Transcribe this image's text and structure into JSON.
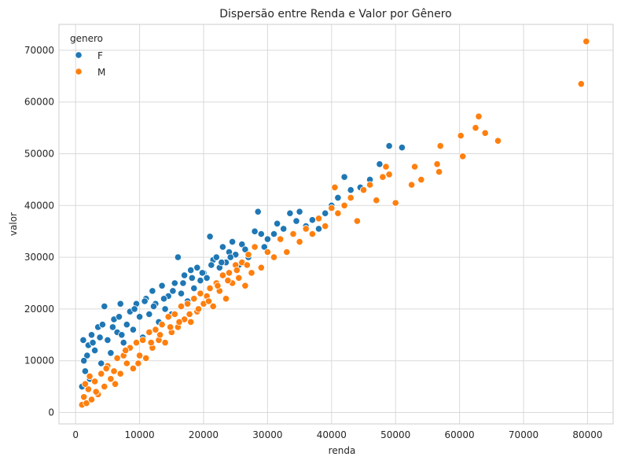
{
  "chart_data": {
    "type": "scatter",
    "title": "Dispersão entre Renda e Valor por Gênero",
    "xlabel": "renda",
    "ylabel": "valor",
    "xlim": [
      -2600,
      84000
    ],
    "ylim": [
      -2200,
      75000
    ],
    "xticks": [
      0,
      10000,
      20000,
      30000,
      40000,
      50000,
      60000,
      70000,
      80000
    ],
    "yticks": [
      0,
      10000,
      20000,
      30000,
      40000,
      50000,
      60000,
      70000
    ],
    "grid": true,
    "legend": {
      "title": "genero",
      "position": "top-left"
    },
    "series": [
      {
        "name": "F",
        "color": "#1f77b4",
        "points": [
          [
            1000,
            5000
          ],
          [
            1200,
            14000
          ],
          [
            1500,
            8000
          ],
          [
            1800,
            11000
          ],
          [
            2000,
            13000
          ],
          [
            2200,
            6500
          ],
          [
            2500,
            15000
          ],
          [
            3000,
            12000
          ],
          [
            3500,
            16500
          ],
          [
            4000,
            9500
          ],
          [
            4500,
            20500
          ],
          [
            5000,
            14000
          ],
          [
            5500,
            11500
          ],
          [
            6000,
            18000
          ],
          [
            6500,
            15500
          ],
          [
            7000,
            21000
          ],
          [
            7500,
            13500
          ],
          [
            8000,
            17000
          ],
          [
            8500,
            19500
          ],
          [
            9000,
            16000
          ],
          [
            9500,
            21000
          ],
          [
            10000,
            18500
          ],
          [
            10500,
            14500
          ],
          [
            11000,
            22000
          ],
          [
            11500,
            19000
          ],
          [
            12000,
            23500
          ],
          [
            12500,
            21000
          ],
          [
            13000,
            17500
          ],
          [
            13500,
            24500
          ],
          [
            14000,
            20000
          ],
          [
            14500,
            22500
          ],
          [
            15000,
            19000
          ],
          [
            15500,
            25000
          ],
          [
            16000,
            30000
          ],
          [
            16500,
            23000
          ],
          [
            17000,
            26500
          ],
          [
            17500,
            21500
          ],
          [
            18000,
            27500
          ],
          [
            18500,
            24000
          ],
          [
            19000,
            28000
          ],
          [
            19500,
            25500
          ],
          [
            20000,
            27000
          ],
          [
            20500,
            26000
          ],
          [
            21000,
            34000
          ],
          [
            21500,
            29500
          ],
          [
            22000,
            30000
          ],
          [
            22500,
            28000
          ],
          [
            23000,
            32000
          ],
          [
            23500,
            29000
          ],
          [
            24000,
            31000
          ],
          [
            24500,
            33000
          ],
          [
            25000,
            30500
          ],
          [
            25500,
            28500
          ],
          [
            26000,
            32500
          ],
          [
            26500,
            31500
          ],
          [
            27000,
            30000
          ],
          [
            28000,
            35000
          ],
          [
            28500,
            38800
          ],
          [
            29000,
            34500
          ],
          [
            29500,
            32000
          ],
          [
            30000,
            33500
          ],
          [
            31000,
            34500
          ],
          [
            31500,
            36500
          ],
          [
            32500,
            35500
          ],
          [
            33500,
            38500
          ],
          [
            34500,
            37000
          ],
          [
            35000,
            38800
          ],
          [
            36000,
            36000
          ],
          [
            37000,
            37200
          ],
          [
            38000,
            35500
          ],
          [
            39000,
            38500
          ],
          [
            40000,
            40000
          ],
          [
            41000,
            41500
          ],
          [
            42000,
            45500
          ],
          [
            43000,
            43000
          ],
          [
            44500,
            43500
          ],
          [
            46000,
            45000
          ],
          [
            47500,
            48000
          ],
          [
            49000,
            51500
          ],
          [
            51000,
            51200
          ],
          [
            1300,
            10000
          ],
          [
            2700,
            13500
          ],
          [
            3800,
            14500
          ],
          [
            4200,
            17000
          ],
          [
            5800,
            16500
          ],
          [
            6800,
            18500
          ],
          [
            7200,
            15000
          ],
          [
            9200,
            20000
          ],
          [
            10800,
            21500
          ],
          [
            12200,
            20500
          ],
          [
            13800,
            22000
          ],
          [
            15200,
            23500
          ],
          [
            16800,
            25000
          ],
          [
            18200,
            26000
          ],
          [
            19800,
            27000
          ],
          [
            21200,
            28500
          ],
          [
            22800,
            29000
          ],
          [
            24200,
            30000
          ]
        ]
      },
      {
        "name": "M",
        "color": "#ff7f0e",
        "points": [
          [
            1000,
            1500
          ],
          [
            1300,
            3000
          ],
          [
            1700,
            1800
          ],
          [
            2000,
            4500
          ],
          [
            2500,
            2500
          ],
          [
            3000,
            6000
          ],
          [
            3500,
            3500
          ],
          [
            4000,
            7500
          ],
          [
            4500,
            5000
          ],
          [
            5000,
            9000
          ],
          [
            5500,
            6500
          ],
          [
            6000,
            8000
          ],
          [
            6500,
            10500
          ],
          [
            7000,
            7500
          ],
          [
            7500,
            11000
          ],
          [
            8000,
            9500
          ],
          [
            8500,
            12500
          ],
          [
            9000,
            8500
          ],
          [
            9500,
            13500
          ],
          [
            10000,
            11000
          ],
          [
            10500,
            14000
          ],
          [
            11000,
            10500
          ],
          [
            11500,
            15500
          ],
          [
            12000,
            12500
          ],
          [
            12500,
            16000
          ],
          [
            13000,
            14000
          ],
          [
            13500,
            17000
          ],
          [
            14000,
            13500
          ],
          [
            14500,
            18500
          ],
          [
            15000,
            15500
          ],
          [
            15500,
            19000
          ],
          [
            16000,
            16500
          ],
          [
            16500,
            20500
          ],
          [
            17000,
            18000
          ],
          [
            17500,
            21000
          ],
          [
            18000,
            17500
          ],
          [
            18500,
            22000
          ],
          [
            19000,
            19500
          ],
          [
            19500,
            23000
          ],
          [
            20000,
            21000
          ],
          [
            20500,
            22500
          ],
          [
            21000,
            24000
          ],
          [
            21500,
            20500
          ],
          [
            22000,
            25000
          ],
          [
            22500,
            23500
          ],
          [
            23000,
            26500
          ],
          [
            23500,
            22000
          ],
          [
            24000,
            27000
          ],
          [
            24500,
            25000
          ],
          [
            25000,
            28500
          ],
          [
            25500,
            26000
          ],
          [
            26000,
            29000
          ],
          [
            26500,
            24500
          ],
          [
            27000,
            30500
          ],
          [
            27500,
            27000
          ],
          [
            28000,
            32000
          ],
          [
            29000,
            28000
          ],
          [
            30000,
            31000
          ],
          [
            31000,
            30000
          ],
          [
            32000,
            33500
          ],
          [
            33000,
            31000
          ],
          [
            34000,
            34500
          ],
          [
            35000,
            33000
          ],
          [
            36000,
            35500
          ],
          [
            37000,
            34500
          ],
          [
            38000,
            37500
          ],
          [
            39000,
            36000
          ],
          [
            40000,
            39500
          ],
          [
            40500,
            43500
          ],
          [
            41000,
            38500
          ],
          [
            42000,
            40000
          ],
          [
            43000,
            41500
          ],
          [
            44000,
            37000
          ],
          [
            45000,
            43000
          ],
          [
            46000,
            44000
          ],
          [
            47000,
            41000
          ],
          [
            48000,
            45500
          ],
          [
            48500,
            47500
          ],
          [
            49000,
            46000
          ],
          [
            50000,
            40500
          ],
          [
            52500,
            44000
          ],
          [
            53000,
            47500
          ],
          [
            54000,
            45000
          ],
          [
            56500,
            48000
          ],
          [
            57000,
            51500
          ],
          [
            56800,
            46500
          ],
          [
            60200,
            53500
          ],
          [
            60500,
            49500
          ],
          [
            62500,
            55000
          ],
          [
            63000,
            57200
          ],
          [
            64000,
            54000
          ],
          [
            66000,
            52500
          ],
          [
            79000,
            63500
          ],
          [
            79800,
            71700
          ],
          [
            1500,
            5500
          ],
          [
            2200,
            7000
          ],
          [
            3200,
            4000
          ],
          [
            4800,
            8500
          ],
          [
            6200,
            5500
          ],
          [
            7800,
            12000
          ],
          [
            9800,
            9500
          ],
          [
            11800,
            13500
          ],
          [
            13200,
            15000
          ],
          [
            14800,
            16500
          ],
          [
            16200,
            17500
          ],
          [
            17800,
            19000
          ],
          [
            19200,
            20000
          ],
          [
            20800,
            21500
          ],
          [
            22200,
            24500
          ],
          [
            23800,
            25500
          ],
          [
            25200,
            27500
          ],
          [
            26800,
            28500
          ]
        ]
      }
    ]
  }
}
